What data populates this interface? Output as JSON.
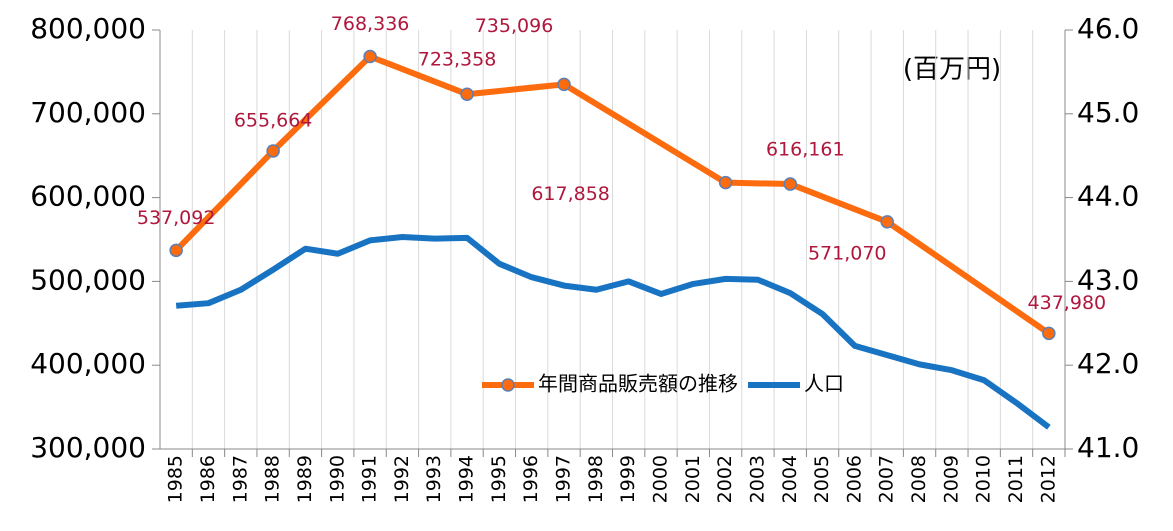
{
  "chart_data": {
    "type": "line",
    "annotations": [
      "(百万円)"
    ],
    "x": [
      1985,
      1986,
      1987,
      1988,
      1989,
      1990,
      1991,
      1992,
      1993,
      1994,
      1995,
      1996,
      1997,
      1998,
      1999,
      2000,
      2001,
      2002,
      2003,
      2004,
      2005,
      2006,
      2007,
      2008,
      2009,
      2010,
      2011,
      2012
    ],
    "xlim": [
      1984.5,
      2012.5
    ],
    "xticks": [
      1985,
      1986,
      1987,
      1988,
      1989,
      1990,
      1991,
      1992,
      1993,
      1994,
      1995,
      1996,
      1997,
      1998,
      1999,
      2000,
      2001,
      2002,
      2003,
      2004,
      2005,
      2006,
      2007,
      2008,
      2009,
      2010,
      2011,
      2012
    ],
    "grid": true,
    "ylim": [
      300000,
      800000
    ],
    "yticks": [
      {
        "value": 300000,
        "label": "300,000"
      },
      {
        "value": 400000,
        "label": "400,000"
      },
      {
        "value": 500000,
        "label": "500,000"
      },
      {
        "value": 600000,
        "label": "600,000"
      },
      {
        "value": 700000,
        "label": "700,000"
      },
      {
        "value": 800000,
        "label": "800,000"
      }
    ],
    "y2lim": [
      41,
      46
    ],
    "y2ticks": [
      {
        "value": 41,
        "label": "41.0"
      },
      {
        "value": 42,
        "label": "42.0"
      },
      {
        "value": 43,
        "label": "43.0"
      },
      {
        "value": 44,
        "label": "44.0"
      },
      {
        "value": 45,
        "label": "45.0"
      },
      {
        "value": 46,
        "label": "46.0"
      }
    ],
    "legend": "bottom",
    "series": [
      {
        "name": "年間商品販売額の推移",
        "color": "#fc6c0f",
        "markers": true,
        "x": [
          1985,
          1988,
          1991,
          1994,
          1997,
          2002,
          2004,
          2007,
          2012
        ],
        "values": [
          537092,
          655664,
          768336,
          723358,
          735096,
          617858,
          616161,
          571070,
          437980
        ],
        "value_labels": [
          "537,092",
          "655,664",
          "768,336",
          "723,358",
          "735,096",
          "617,858",
          "616,161",
          "571,070",
          "437,980"
        ]
      },
      {
        "name": "人口",
        "color": "#1874c2",
        "axis": "y2",
        "values": [
          42.71,
          42.74,
          42.9,
          43.14,
          43.39,
          43.33,
          43.49,
          43.53,
          43.51,
          43.52,
          43.21,
          43.05,
          42.95,
          42.9,
          43.0,
          42.85,
          42.97,
          43.03,
          43.02,
          42.86,
          42.61,
          42.23,
          42.12,
          42.01,
          41.94,
          41.82,
          41.55,
          41.26
        ]
      }
    ]
  }
}
